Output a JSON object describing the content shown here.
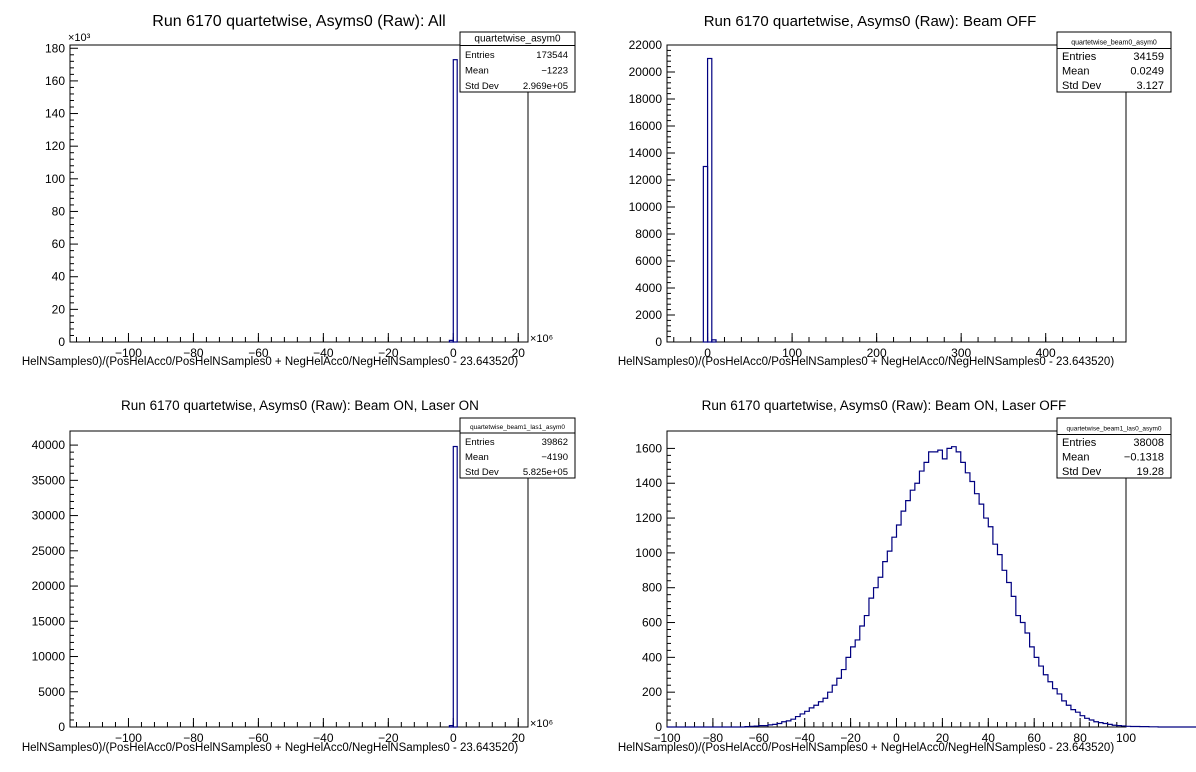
{
  "chart_data": [
    {
      "type": "bar",
      "title": "Run 6170 quartetwise, Asyms0 (Raw): All",
      "xlabel": "HelNSamples0)/(PosHelAcc0/PosHelNSamples0 + NegHelAcc0/NegHelNSamples0 - 23.643520)",
      "ylabel": "",
      "x_exponent": "×10⁶",
      "y_exponent": "×10³",
      "xlim": [
        -118,
        23
      ],
      "ylim": [
        0,
        182
      ],
      "x_ticks": [
        -100,
        -80,
        -60,
        -40,
        -20,
        0,
        20
      ],
      "y_ticks": [
        0,
        20,
        40,
        60,
        80,
        100,
        120,
        140,
        160,
        180
      ],
      "bins": [
        [
          -1.2,
          0,
          1.0
        ],
        [
          0,
          1.2,
          173.0
        ]
      ],
      "stats": {
        "name": "quartetwise_asym0",
        "rows": [
          {
            "label": "Entries",
            "value": "173544"
          },
          {
            "label": "Mean",
            "value": "−1223"
          },
          {
            "label": "Std Dev",
            "value": "2.969e+05"
          }
        ]
      }
    },
    {
      "type": "bar",
      "title": "Run 6170 quartetwise, Asyms0 (Raw): Beam OFF",
      "xlabel": "HelNSamples0)/(PosHelAcc0/PosHelNSamples0 + NegHelAcc0/NegHelNSamples0 - 23.643520)",
      "ylabel": "",
      "x_exponent": "",
      "y_exponent": "",
      "xlim": [
        -48,
        495
      ],
      "ylim": [
        0,
        22000
      ],
      "x_ticks": [
        0,
        100,
        200,
        300,
        400
      ],
      "y_ticks": [
        0,
        2000,
        4000,
        6000,
        8000,
        10000,
        12000,
        14000,
        16000,
        18000,
        20000,
        22000
      ],
      "bins": [
        [
          -5,
          0,
          13000
        ],
        [
          0,
          5,
          21000
        ],
        [
          5,
          10,
          160
        ]
      ],
      "stats": {
        "name": "quartetwise_beam0_asym0",
        "rows": [
          {
            "label": "Entries",
            "value": "34159"
          },
          {
            "label": "Mean",
            "value": "0.0249"
          },
          {
            "label": "Std Dev",
            "value": "3.127"
          }
        ]
      }
    },
    {
      "type": "bar",
      "title": "Run 6170 quartetwise, Asyms0 (Raw): Beam ON, Laser ON",
      "xlabel": "HelNSamples0)/(PosHelAcc0/PosHelNSamples0 + NegHelAcc0/NegHelNSamples0 - 23.643520)",
      "ylabel": "",
      "x_exponent": "×10⁶",
      "y_exponent": "",
      "xlim": [
        -118,
        23
      ],
      "ylim": [
        0,
        42000
      ],
      "x_ticks": [
        -100,
        -80,
        -60,
        -40,
        -20,
        0,
        20
      ],
      "y_ticks": [
        0,
        5000,
        10000,
        15000,
        20000,
        25000,
        30000,
        35000,
        40000
      ],
      "bins": [
        [
          -1.2,
          0,
          200
        ],
        [
          0,
          1.2,
          39800
        ]
      ],
      "stats": {
        "name": "quartetwise_beam1_las1_asym0",
        "rows": [
          {
            "label": "Entries",
            "value": "39862"
          },
          {
            "label": "Mean",
            "value": "−4190"
          },
          {
            "label": "Std Dev",
            "value": "5.825e+05"
          }
        ]
      }
    },
    {
      "type": "bar",
      "title": "Run 6170 quartetwise, Asyms0 (Raw): Beam ON, Laser OFF",
      "xlabel": "HelNSamples0)/(PosHelAcc0/PosHelNSamples0 + NegHelAcc0/NegHelNSamples0 - 23.643520)",
      "ylabel": "",
      "x_exponent": "",
      "y_exponent": "",
      "xlim": [
        -100,
        100
      ],
      "ylim": [
        0,
        1700
      ],
      "x_ticks": [
        -100,
        -80,
        -60,
        -40,
        -20,
        0,
        20,
        40,
        60,
        80,
        100
      ],
      "y_ticks": [
        0,
        200,
        400,
        600,
        800,
        1000,
        1200,
        1400,
        1600
      ],
      "bin_start": -100,
      "bin_width": 2,
      "values": [
        0,
        0,
        0,
        0,
        0,
        0,
        0,
        0,
        0,
        0,
        0,
        0,
        0,
        0,
        0,
        0,
        0,
        2,
        4,
        5,
        8,
        8,
        12,
        15,
        20,
        30,
        35,
        45,
        60,
        75,
        90,
        110,
        125,
        145,
        165,
        200,
        240,
        280,
        330,
        400,
        460,
        500,
        580,
        640,
        740,
        800,
        860,
        950,
        1010,
        1090,
        1160,
        1240,
        1300,
        1360,
        1400,
        1470,
        1520,
        1580,
        1580,
        1590,
        1540,
        1600,
        1610,
        1580,
        1520,
        1460,
        1410,
        1340,
        1280,
        1200,
        1150,
        1050,
        990,
        900,
        830,
        750,
        640,
        600,
        540,
        460,
        400,
        350,
        300,
        260,
        220,
        190,
        150,
        125,
        100,
        85,
        65,
        50,
        40,
        30,
        25,
        20,
        15,
        10,
        8,
        6,
        4,
        3,
        3,
        2,
        2,
        1,
        1,
        0,
        0,
        0,
        0,
        0,
        0,
        0,
        0,
        0,
        0,
        0,
        0,
        0,
        0,
        0,
        0,
        0,
        0,
        0,
        0,
        0,
        0,
        0,
        0,
        0,
        0,
        0,
        0,
        0,
        0,
        0
      ],
      "stats": {
        "name": "quartetwise_beam1_las0_asym0",
        "rows": [
          {
            "label": "Entries",
            "value": "38008"
          },
          {
            "label": "Mean",
            "value": "−0.1318"
          },
          {
            "label": "Std Dev",
            "value": "19.28"
          }
        ]
      }
    }
  ]
}
